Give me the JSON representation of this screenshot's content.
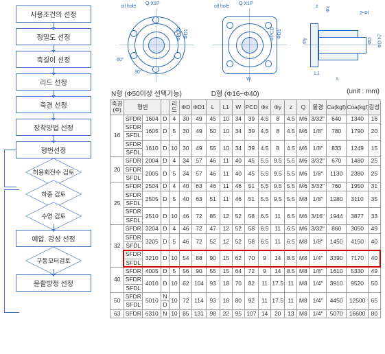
{
  "flowchart": {
    "steps": [
      "사용조건의 선정",
      "정밀도 선정",
      "축길이 선정",
      "리드 선정",
      "축경 선정",
      "장착방법 선정",
      "형번선정",
      "허용회전수 검토",
      "하중 검토",
      "수명 검토",
      "예압. 강성 선정",
      "구동모터검토",
      "윤활방정 선정"
    ]
  },
  "drawings": {
    "labels": {
      "oil_hole": "oil hole",
      "q_x1p": "Q X1P",
      "n_type": "N형 (Φ50이상 선택가능)",
      "d_type": "D형 (Φ16~Φ40)",
      "phi_pcd": "ΦPCD",
      "phi_d1": "ΦD1",
      "phi_d": "ΦD",
      "phi_d_h7": "ΦD h7",
      "phi_y": "Φy",
      "phi_x": "Φx",
      "w": "W",
      "l": "L",
      "l1": "L1",
      "z": "z",
      "angle30": "30°",
      "angle60": "60°",
      "two_phi": "2-Φl"
    },
    "colors": {
      "line": "#2864b4"
    }
  },
  "table": {
    "unit_note": "(unit : mm)",
    "headers": [
      "축경(Φ)",
      "형번",
      "",
      "리드",
      "ΦD",
      "ΦD1",
      "L",
      "L1",
      "W",
      "PCD",
      "Φx",
      "Φy",
      "z",
      "Q",
      "볼경",
      "Ca(kgf)",
      "Coa(kgf)",
      "강성"
    ],
    "model_prefix_combined": "SFDR\nSFDL",
    "model_prefix_single": "SFDR",
    "groups": [
      {
        "dia": "16",
        "rows": [
          {
            "m": "SFDR",
            "num": "1604",
            "d": "D",
            "lead": "4",
            "vD": "30",
            "vD1": "49",
            "L": "45",
            "L1": "10",
            "W": "34",
            "PCD": "39",
            "x": "4.5",
            "y": "8",
            "z": "4.5",
            "Q": "M6",
            "ball": "3/32''",
            "Ca": "640",
            "Coa": "1340",
            "stiff": "16"
          },
          {
            "m": "BOTH",
            "num": "1605",
            "d": "D",
            "lead": "5",
            "vD": "30",
            "vD1": "49",
            "L": "50",
            "L1": "10",
            "W": "34",
            "PCD": "39",
            "x": "4.5",
            "y": "8",
            "z": "4.5",
            "Q": "M6",
            "ball": "1/8''",
            "Ca": "780",
            "Coa": "1790",
            "stiff": "20"
          },
          {
            "m": "BOTH",
            "num": "1610",
            "d": "D",
            "lead": "10",
            "vD": "30",
            "vD1": "49",
            "L": "55",
            "L1": "10",
            "W": "34",
            "PCD": "39",
            "x": "4.5",
            "y": "8",
            "z": "4.5",
            "Q": "M6",
            "ball": "1/8''",
            "Ca": "833",
            "Coa": "1249",
            "stiff": "15"
          }
        ]
      },
      {
        "dia": "20",
        "rows": [
          {
            "m": "SFDR",
            "num": "2004",
            "d": "D",
            "lead": "4",
            "vD": "34",
            "vD1": "57",
            "L": "46",
            "L1": "11",
            "W": "40",
            "PCD": "45",
            "x": "5.5",
            "y": "9.5",
            "z": "5.5",
            "Q": "M6",
            "ball": "3/32''",
            "Ca": "670",
            "Coa": "1480",
            "stiff": "25"
          },
          {
            "m": "BOTH",
            "num": "2005",
            "d": "D",
            "lead": "5",
            "vD": "34",
            "vD1": "57",
            "L": "46",
            "L1": "11",
            "W": "40",
            "PCD": "45",
            "x": "5.5",
            "y": "9.5",
            "z": "5.5",
            "Q": "M6",
            "ball": "1/8''",
            "Ca": "1130",
            "Coa": "2380",
            "stiff": "25"
          }
        ]
      },
      {
        "dia": "25",
        "rows": [
          {
            "m": "SFDR",
            "num": "2504",
            "d": "D",
            "lead": "4",
            "vD": "40",
            "vD1": "63",
            "L": "46",
            "L1": "11",
            "W": "46",
            "PCD": "51",
            "x": "5.5",
            "y": "9.5",
            "z": "5.5",
            "Q": "M6",
            "ball": "3/32''",
            "Ca": "760",
            "Coa": "1950",
            "stiff": "31"
          },
          {
            "m": "BOTH",
            "num": "2505",
            "d": "D",
            "lead": "5",
            "vD": "40",
            "vD1": "63",
            "L": "51",
            "L1": "11",
            "W": "46",
            "PCD": "51",
            "x": "5.5",
            "y": "9.5",
            "z": "5.5",
            "Q": "M8",
            "ball": "1/8''",
            "Ca": "1280",
            "Coa": "3110",
            "stiff": "35"
          },
          {
            "m": "BOTH",
            "num": "2510",
            "d": "D",
            "lead": "10",
            "vD": "46",
            "vD1": "72",
            "L": "85",
            "L1": "12",
            "W": "52",
            "PCD": "58",
            "x": "6.5",
            "y": "11",
            "z": "6.5",
            "Q": "M6",
            "ball": "3/16''",
            "Ca": "1944",
            "Coa": "3877",
            "stiff": "33"
          }
        ]
      },
      {
        "dia": "32",
        "rows": [
          {
            "m": "SFDR",
            "num": "3204",
            "d": "D",
            "lead": "4",
            "vD": "46",
            "vD1": "72",
            "L": "47",
            "L1": "12",
            "W": "52",
            "PCD": "58",
            "x": "6.5",
            "y": "11",
            "z": "6.5",
            "Q": "M6",
            "ball": "3/32''",
            "Ca": "860",
            "Coa": "3050",
            "stiff": "49"
          },
          {
            "m": "BOTH",
            "num": "3205",
            "d": "D",
            "lead": "5",
            "vD": "46",
            "vD1": "72",
            "L": "52",
            "L1": "12",
            "W": "52",
            "PCD": "58",
            "x": "6.5",
            "y": "11",
            "z": "6.5",
            "Q": "M8",
            "ball": "1/8''",
            "Ca": "1450",
            "Coa": "4150",
            "stiff": "40"
          },
          {
            "m": "BOTH",
            "num": "3210",
            "d": "D",
            "lead": "10",
            "vD": "54",
            "vD1": "88",
            "L": "90",
            "L1": "15",
            "W": "62",
            "PCD": "70",
            "x": "9",
            "y": "14",
            "z": "8.5",
            "Q": "M8",
            "ball": "1/4''",
            "Ca": "3390",
            "Coa": "7170",
            "stiff": "40",
            "highlight": true
          }
        ]
      },
      {
        "dia": "40",
        "rows": [
          {
            "m": "SFDR",
            "num": "4005",
            "d": "D",
            "lead": "5",
            "vD": "56",
            "vD1": "90",
            "L": "55",
            "L1": "15",
            "W": "64",
            "PCD": "72",
            "x": "9",
            "y": "14",
            "z": "8.5",
            "Q": "M8",
            "ball": "1/8''",
            "Ca": "1610",
            "Coa": "5330",
            "stiff": "49"
          },
          {
            "m": "BOTH",
            "num": "4010",
            "d": "D",
            "lead": "10",
            "vD": "62",
            "vD1": "104",
            "L": "93",
            "L1": "18",
            "W": "70",
            "PCD": "82",
            "x": "11",
            "y": "17.5",
            "z": "11",
            "Q": "M8",
            "ball": "1/4''",
            "Ca": "3910",
            "Coa": "9520",
            "stiff": "50"
          }
        ]
      },
      {
        "dia": "50",
        "rows": [
          {
            "m": "BOTH",
            "num": "5010",
            "d": "ND",
            "lead": "10",
            "vD": "72",
            "vD1": "114",
            "L": "93",
            "L1": "18",
            "W": "80",
            "PCD": "92",
            "x": "11",
            "y": "17.5",
            "z": "11",
            "Q": "M8",
            "ball": "1/4''",
            "Ca": "4450",
            "Coa": "12500",
            "stiff": "65"
          }
        ]
      },
      {
        "dia": "63",
        "rows": [
          {
            "m": "SFDR",
            "num": "6310",
            "d": "ND",
            "lead": "10",
            "vD": "85",
            "vD1": "131",
            "L": "98",
            "L1": "22",
            "W": "95",
            "PCD": "107",
            "x": "14",
            "y": "20",
            "z": "13",
            "Q": "M8",
            "ball": "1/4''",
            "Ca": "5070",
            "Coa": "16600",
            "stiff": "80"
          }
        ]
      }
    ]
  },
  "colors": {
    "border": "#4472c4",
    "highlight": "#d00000",
    "tech_line": "#2864b4"
  }
}
